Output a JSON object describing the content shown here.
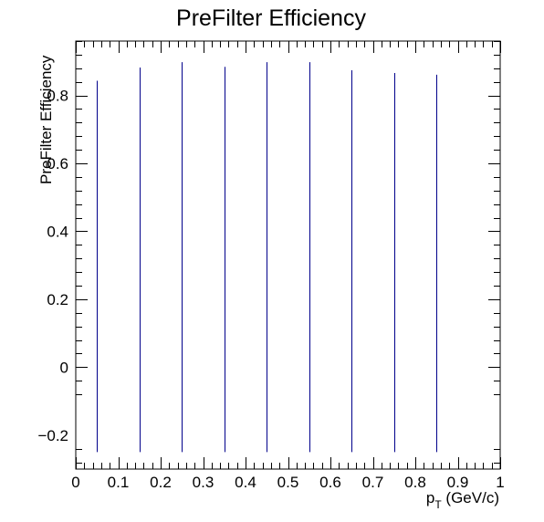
{
  "chart_data": {
    "type": "bar",
    "title": "PreFilter Efficiency",
    "xlabel_main": "p",
    "xlabel_sub": "T",
    "xlabel_unit": " (GeV/c)",
    "ylabel": "PreFilter Efficiency",
    "xlim": [
      0,
      1
    ],
    "ylim": [
      -0.3,
      0.96
    ],
    "bar_baseline": -0.25,
    "x_ticks": [
      0,
      0.1,
      0.2,
      0.3,
      0.4,
      0.5,
      0.6,
      0.7,
      0.8,
      0.9,
      1
    ],
    "x_tick_labels": [
      "0",
      "0.1",
      "0.2",
      "0.3",
      "0.4",
      "0.5",
      "0.6",
      "0.7",
      "0.8",
      "0.9",
      "1"
    ],
    "y_ticks": [
      -0.2,
      0,
      0.2,
      0.4,
      0.6,
      0.8
    ],
    "y_tick_labels": [
      "−0.2",
      "0",
      "0.2",
      "0.4",
      "0.6",
      "0.8"
    ],
    "x": [
      0.05,
      0.15,
      0.25,
      0.35,
      0.45,
      0.55,
      0.65,
      0.75,
      0.85
    ],
    "values": [
      0.843,
      0.882,
      0.898,
      0.884,
      0.898,
      0.898,
      0.874,
      0.866,
      0.861
    ],
    "color": "#00008b",
    "grid": false,
    "legend": "none"
  }
}
